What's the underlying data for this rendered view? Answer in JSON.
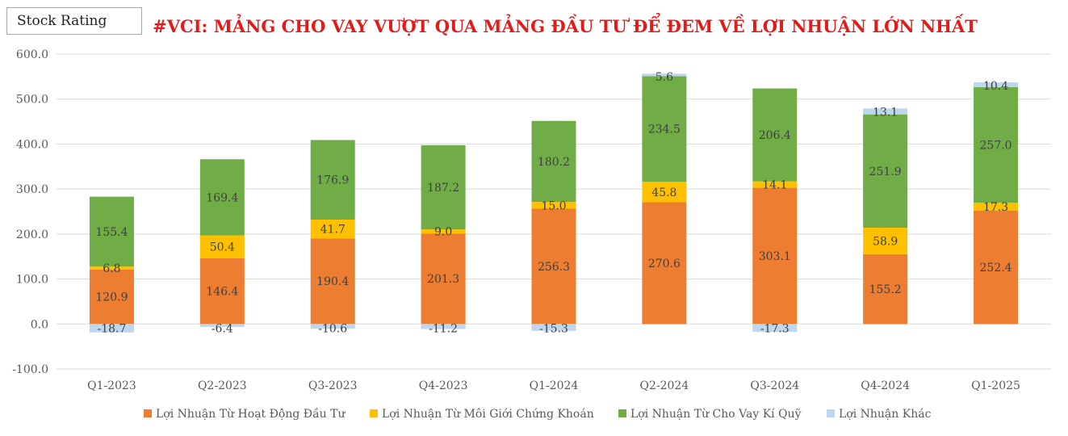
{
  "brand": {
    "label": "Stock Rating"
  },
  "chart_data": {
    "type": "bar",
    "stacked": true,
    "title": "#VCI: MẢNG CHO VAY VƯỢT QUA MẢNG ĐẦU TƯ ĐỂ ĐEM VỀ LỢI NHUẬN LỚN NHẤT",
    "xlabel": "",
    "ylabel": "",
    "ylim": [
      -100,
      600
    ],
    "yticks": [
      -100,
      0,
      100,
      200,
      300,
      400,
      500,
      600
    ],
    "ytick_labels": [
      "-100.0",
      "0.0",
      "100.0",
      "200.0",
      "300.0",
      "400.0",
      "500.0",
      "600.0"
    ],
    "grid": true,
    "legend_position": "bottom",
    "categories": [
      "Q1-2023",
      "Q2-2023",
      "Q3-2023",
      "Q4-2023",
      "Q1-2024",
      "Q2-2024",
      "Q3-2024",
      "Q4-2024",
      "Q1-2025"
    ],
    "series": [
      {
        "name": "Lợi Nhuận Từ Hoạt Động Đầu Tư",
        "color": "#ed7d31",
        "values": [
          120.9,
          146.4,
          190.4,
          201.3,
          256.3,
          270.6,
          303.1,
          155.2,
          252.4
        ],
        "labels": [
          "120.9",
          "146.4",
          "190.4",
          "201.3",
          "256.3",
          "270.6",
          "303.1",
          "155.2",
          "252.4"
        ]
      },
      {
        "name": "Lợi Nhuận Từ Môi Giới Chứng Khoán",
        "color": "#ffc000",
        "values": [
          6.8,
          50.4,
          41.7,
          9.0,
          15.0,
          45.8,
          14.1,
          58.9,
          17.3
        ],
        "labels": [
          "6.8",
          "50.4",
          "41.7",
          "9.0",
          "15.0",
          "45.8",
          "14.1",
          "58.9",
          "17.3"
        ]
      },
      {
        "name": "Lợi Nhuận Từ Cho Vay Kí Quỹ",
        "color": "#70ad47",
        "values": [
          155.4,
          169.4,
          176.9,
          187.2,
          180.2,
          234.5,
          206.4,
          251.9,
          257.0
        ],
        "labels": [
          "155.4",
          "169.4",
          "176.9",
          "187.2",
          "180.2",
          "234.5",
          "206.4",
          "251.9",
          "257.0"
        ]
      },
      {
        "name": "Lợi Nhuận Khác",
        "color": "#bdd7ee",
        "values": [
          -18.7,
          -6.4,
          -10.6,
          -11.2,
          -15.3,
          5.6,
          -17.3,
          13.1,
          10.4
        ],
        "labels": [
          "-18.7",
          "-6.4",
          "-10.6",
          "-11.2",
          "-15.3",
          "5.6",
          "-17.3",
          "13.1",
          "10.4"
        ]
      }
    ]
  }
}
